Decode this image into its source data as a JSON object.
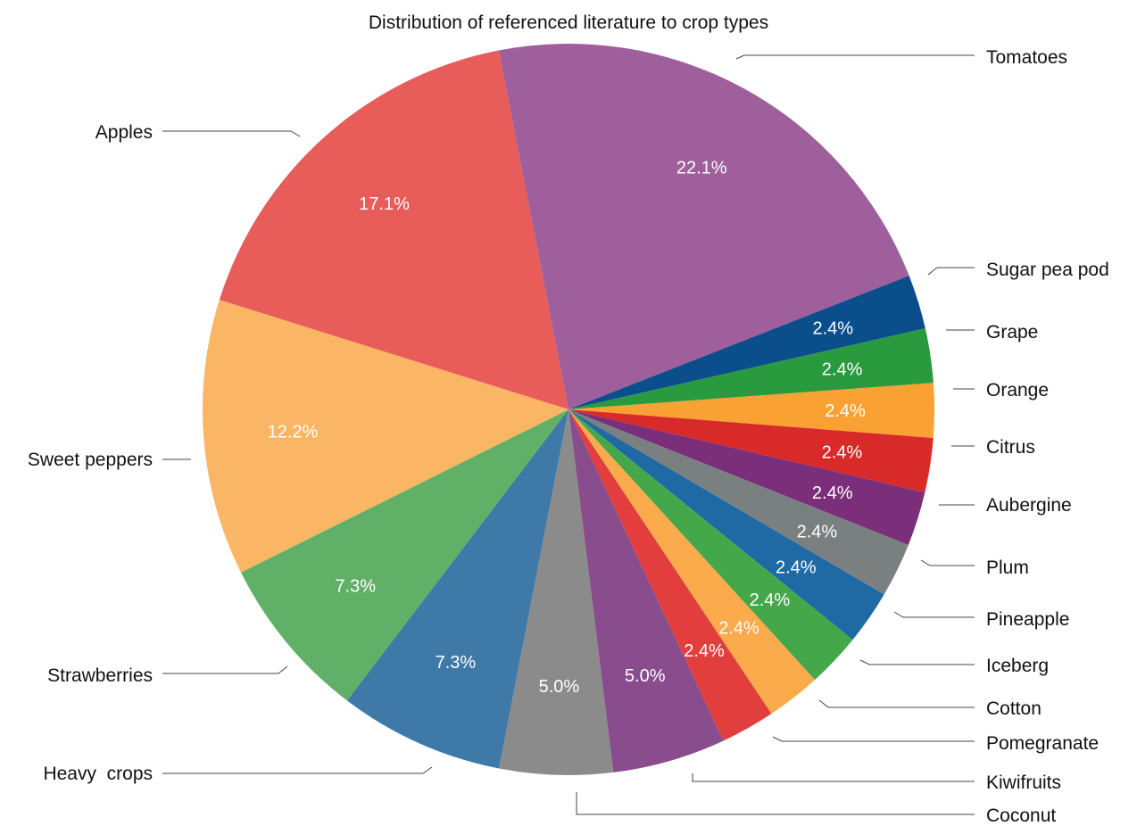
{
  "chart_data": {
    "type": "pie",
    "title": "Distribution of referenced literature to crop types",
    "slices": [
      {
        "label": "Tomatoes",
        "value": 22.1,
        "value_label": "22.1%",
        "color": "#9e5f9c"
      },
      {
        "label": "Sugar pea pod",
        "value": 2.4,
        "value_label": "2.4%",
        "color": "#0a4f8c"
      },
      {
        "label": "Grape",
        "value": 2.4,
        "value_label": "2.4%",
        "color": "#2a9a3e"
      },
      {
        "label": "Orange",
        "value": 2.4,
        "value_label": "2.4%",
        "color": "#f9a233"
      },
      {
        "label": "Citrus",
        "value": 2.4,
        "value_label": "2.4%",
        "color": "#d92a2a"
      },
      {
        "label": "Aubergine",
        "value": 2.4,
        "value_label": "2.4%",
        "color": "#7b2f7b"
      },
      {
        "label": "Plum",
        "value": 2.4,
        "value_label": "2.4%",
        "color": "#7a807f"
      },
      {
        "label": "Pineapple",
        "value": 2.4,
        "value_label": "2.4%",
        "color": "#1f6aa4"
      },
      {
        "label": "Iceberg",
        "value": 2.4,
        "value_label": "2.4%",
        "color": "#44a84b"
      },
      {
        "label": "Cotton",
        "value": 2.4,
        "value_label": "2.4%",
        "color": "#fbaa4c"
      },
      {
        "label": "Pomegranate",
        "value": 2.4,
        "value_label": "2.4%",
        "color": "#e33e3e"
      },
      {
        "label": "Kiwifruits",
        "value": 5.0,
        "value_label": "5.0%",
        "color": "#894c8c"
      },
      {
        "label": "Coconut",
        "value": 5.0,
        "value_label": "5.0%",
        "color": "#8b8b8b"
      },
      {
        "label": "Heavy  crops",
        "value": 7.3,
        "value_label": "7.3%",
        "color": "#3e79a8"
      },
      {
        "label": "Strawberries",
        "value": 7.3,
        "value_label": "7.3%",
        "color": "#61b067"
      },
      {
        "label": "Sweet peppers",
        "value": 12.2,
        "value_label": "12.2%",
        "color": "#fbb665"
      },
      {
        "label": "Apples",
        "value": 17.1,
        "value_label": "17.1%",
        "color": "#e85c5a"
      }
    ]
  }
}
